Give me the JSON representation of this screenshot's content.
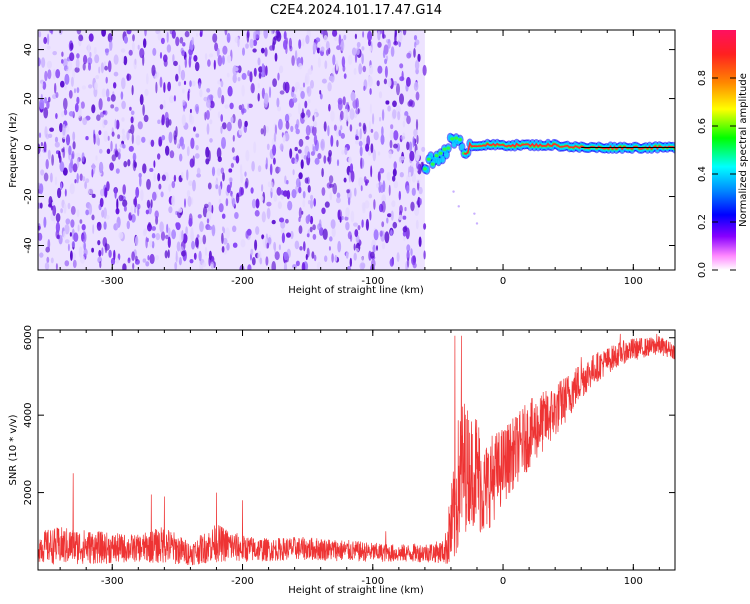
{
  "title": "C2E4.2024.101.17.47.G14",
  "colors": {
    "signal": "#ee3333",
    "noise_dark": "#6b1be0",
    "noise_light": "#d6c2ff",
    "colorbar": [
      "#ff1060",
      "#ff2020",
      "#ff8800",
      "#ffff00",
      "#00ff00",
      "#00ffff",
      "#0088ff",
      "#0000ff",
      "#8800ff",
      "#ff88ff",
      "#ffffff"
    ]
  },
  "chart_data": [
    {
      "type": "heatmap",
      "xlabel": "Height of straight line (km)",
      "ylabel": "Frequency (Hz)",
      "xlim": [
        -357,
        132
      ],
      "ylim": [
        -50,
        48
      ],
      "x_ticks": [
        -300,
        -200,
        -100,
        0,
        100
      ],
      "y_ticks": [
        -40,
        -20,
        0,
        20,
        40
      ],
      "noise_region_x": [
        -357,
        -60
      ],
      "signal_track": {
        "x": [
          -60,
          -50,
          -40,
          -30,
          -20,
          0,
          20,
          40,
          60,
          80,
          100,
          132
        ],
        "frequency": [
          -8,
          -4,
          2,
          0,
          1,
          1,
          1,
          1,
          0,
          0,
          0,
          0
        ]
      },
      "colorbar": {
        "label": "Normalized spectral amplitude",
        "ticks": [
          0.0,
          0.2,
          0.4,
          0.6,
          0.8
        ],
        "range": [
          0,
          1
        ]
      }
    },
    {
      "type": "line",
      "xlabel": "Height of straight line (km)",
      "ylabel": "SNR (10 * v/v)",
      "xlim": [
        -357,
        132
      ],
      "ylim": [
        0,
        6200
      ],
      "x_ticks": [
        -300,
        -200,
        -100,
        0,
        100
      ],
      "y_ticks": [
        2000,
        4000,
        6000
      ],
      "series": [
        {
          "x": [
            -357,
            -340,
            -320,
            -300,
            -280,
            -260,
            -240,
            -220,
            -200,
            -180,
            -160,
            -140,
            -120,
            -100,
            -80,
            -60,
            -45,
            -38,
            -34,
            -30,
            -25,
            -20,
            -15,
            -10,
            0,
            10,
            20,
            30,
            40,
            50,
            60,
            70,
            80,
            90,
            100,
            110,
            120,
            132
          ],
          "mid": [
            600,
            620,
            600,
            560,
            560,
            650,
            420,
            700,
            550,
            520,
            560,
            540,
            500,
            460,
            430,
            450,
            470,
            1300,
            2300,
            2700,
            2600,
            2600,
            2000,
            2300,
            2700,
            3100,
            3500,
            3800,
            4100,
            4500,
            4900,
            5200,
            5400,
            5600,
            5700,
            5750,
            5800,
            5650
          ],
          "spread": [
            400,
            500,
            450,
            400,
            350,
            500,
            300,
            500,
            350,
            300,
            300,
            300,
            280,
            250,
            230,
            250,
            300,
            1400,
            1800,
            1800,
            1400,
            1600,
            1200,
            1200,
            1000,
            900,
            900,
            800,
            700,
            600,
            500,
            400,
            350,
            300,
            300,
            250,
            250,
            200
          ],
          "spikes": [
            [
              -330,
              2500
            ],
            [
              -270,
              1950
            ],
            [
              -260,
              1900
            ],
            [
              -220,
              2000
            ],
            [
              -200,
              1800
            ],
            [
              -90,
              1000
            ],
            [
              -37,
              6050
            ],
            [
              -32,
              6050
            ],
            [
              -20,
              2600
            ],
            [
              60,
              5500
            ],
            [
              90,
              6100
            ],
            [
              118,
              6100
            ]
          ]
        }
      ]
    }
  ]
}
